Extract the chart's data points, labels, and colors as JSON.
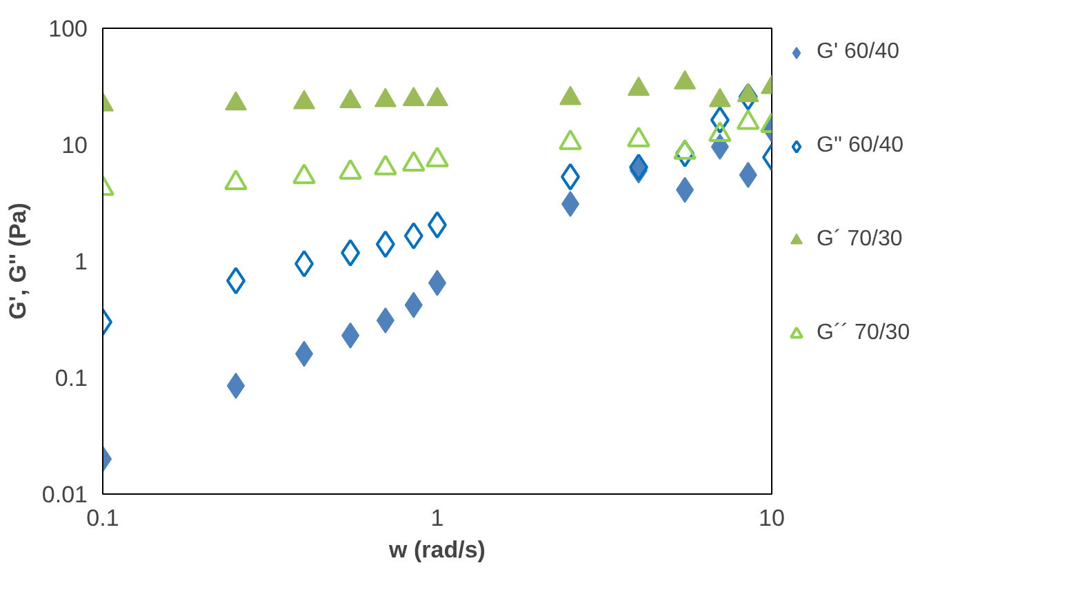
{
  "chart_data": {
    "type": "scatter",
    "xlabel": "w (rad/s)",
    "ylabel": "G', G'' (Pa)",
    "log": "xy",
    "grid": false,
    "legend": "right",
    "x": [
      0.1,
      0.25,
      0.4,
      0.55,
      0.7,
      0.85,
      1,
      2.5,
      4,
      5.5,
      7,
      8.5,
      10
    ],
    "xlim": [
      0.1,
      10
    ],
    "xticks": [
      0.1,
      1,
      10
    ],
    "ylim": [
      0.01,
      100
    ],
    "yticks": [
      0.01,
      0.1,
      1,
      10,
      100
    ],
    "series": [
      {
        "name": "G' 60/40",
        "color": "#4f81bd",
        "marker": "diamond",
        "values": [
          0.02,
          0.085,
          0.16,
          0.23,
          0.31,
          0.42,
          0.65,
          3.1,
          6.0,
          4.1,
          9.6,
          5.5,
          13.5
        ]
      },
      {
        "name": "G'' 60/40",
        "color": "#0070c0",
        "marker": "diamond-open",
        "values": [
          0.3,
          0.68,
          0.95,
          1.18,
          1.4,
          1.65,
          2.05,
          5.3,
          6.4,
          8.4,
          16.3,
          25.7,
          7.8
        ]
      },
      {
        "name": "G´ 70/30",
        "color": "#9bbb59",
        "marker": "triangle",
        "values": [
          22,
          22.5,
          23,
          23.5,
          24,
          24.5,
          24.5,
          25,
          30,
          34,
          24,
          26.5,
          31
        ]
      },
      {
        "name": "G´´ 70/30",
        "color": "#92d050",
        "marker": "triangle-open",
        "values": [
          4.2,
          4.7,
          5.3,
          5.8,
          6.3,
          6.8,
          7.4,
          10.4,
          11,
          8.6,
          12.2,
          15.5,
          14.6
        ]
      }
    ]
  }
}
